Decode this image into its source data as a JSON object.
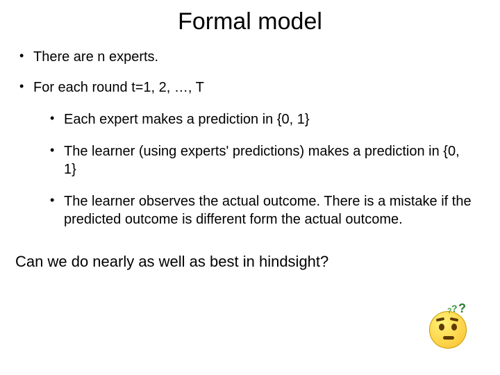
{
  "title": "Formal model",
  "bullets": {
    "b1": "There are n experts.",
    "b2": "For each round t=1, 2, …, T",
    "sub1": "Each expert makes a prediction in {0, 1}",
    "sub2": "The learner (using experts' predictions) makes a prediction in {0, 1}",
    "sub3": "The learner observes the actual outcome. There is  a mistake if the predicted outcome is different form the actual outcome."
  },
  "closing": "Can we do nearly as well as best in hindsight?",
  "colors": {
    "text": "#000000",
    "background": "#ffffff",
    "emoji_face": "#fbc02d",
    "emoji_feature": "#5d3a00",
    "qmark": "#2e7d32"
  },
  "typography": {
    "font_family": "Comic Sans MS",
    "title_fontsize": 34,
    "body_fontsize": 20,
    "closing_fontsize": 22
  },
  "emoji": {
    "name": "thinking-face-with-question-marks"
  }
}
